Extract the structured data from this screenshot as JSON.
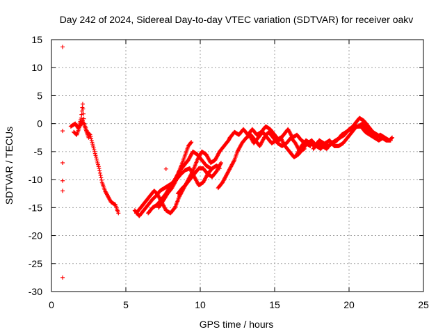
{
  "chart_data": {
    "type": "scatter",
    "title": "Day 242 of 2024, Sidereal Day-to-day VTEC variation (SDTVAR) for receiver oakv",
    "xlabel": "GPS time / hours",
    "ylabel": "SDTVAR / TECUs",
    "xlim": [
      0,
      25
    ],
    "ylim": [
      -30,
      15
    ],
    "xticks": [
      0,
      5,
      10,
      15,
      20,
      25
    ],
    "yticks": [
      -30,
      -25,
      -20,
      -15,
      -10,
      -5,
      0,
      5,
      10,
      15
    ],
    "grid": true,
    "marker": "+",
    "series_color": "#ff0000",
    "outliers": [
      [
        0.75,
        13.7
      ],
      [
        0.75,
        -1.3
      ],
      [
        0.75,
        -7.0
      ],
      [
        0.75,
        -10.2
      ],
      [
        0.75,
        -12.0
      ],
      [
        0.75,
        -27.5
      ],
      [
        7.7,
        -8.1
      ]
    ],
    "tracks": [
      [
        [
          1.3,
          -0.5
        ],
        [
          1.6,
          0.0
        ],
        [
          1.8,
          -0.8
        ],
        [
          2.0,
          1.0
        ],
        [
          2.1,
          3.5
        ],
        [
          2.2,
          0.0
        ],
        [
          2.4,
          -1.5
        ],
        [
          2.6,
          -2.0
        ],
        [
          2.8,
          -4.0
        ],
        [
          3.0,
          -6.0
        ],
        [
          3.2,
          -8.0
        ],
        [
          3.4,
          -10.5
        ],
        [
          3.6,
          -12.0
        ],
        [
          3.8,
          -13.0
        ],
        [
          4.0,
          -14.0
        ],
        [
          4.3,
          -14.5
        ],
        [
          4.5,
          -16.0
        ]
      ],
      [
        [
          1.5,
          -1.5
        ],
        [
          1.7,
          -2.0
        ],
        [
          1.9,
          -0.5
        ],
        [
          2.1,
          0.5
        ],
        [
          2.3,
          -1.0
        ],
        [
          2.5,
          -2.5
        ]
      ],
      [
        [
          5.6,
          -15.5
        ],
        [
          5.9,
          -16.5
        ],
        [
          6.2,
          -15.5
        ],
        [
          6.5,
          -14.5
        ],
        [
          6.8,
          -13.5
        ],
        [
          7.0,
          -13.0
        ],
        [
          7.3,
          -12.0
        ],
        [
          7.6,
          -11.5
        ],
        [
          7.9,
          -11.0
        ],
        [
          8.2,
          -10.5
        ],
        [
          8.5,
          -9.0
        ],
        [
          8.8,
          -7.0
        ],
        [
          9.0,
          -5.5
        ],
        [
          9.2,
          -4.0
        ],
        [
          9.4,
          -3.3
        ]
      ],
      [
        [
          5.7,
          -16.0
        ],
        [
          6.0,
          -15.0
        ],
        [
          6.3,
          -14.0
        ],
        [
          6.6,
          -13.0
        ],
        [
          6.9,
          -12.0
        ],
        [
          7.1,
          -12.5
        ],
        [
          7.4,
          -14.0
        ],
        [
          7.7,
          -15.5
        ],
        [
          8.0,
          -16.0
        ],
        [
          8.3,
          -15.0
        ],
        [
          8.6,
          -13.0
        ],
        [
          8.9,
          -11.5
        ],
        [
          9.2,
          -10.0
        ],
        [
          9.5,
          -8.5
        ],
        [
          9.8,
          -6.5
        ],
        [
          10.1,
          -5.0
        ],
        [
          10.4,
          -5.5
        ],
        [
          10.7,
          -7.0
        ],
        [
          11.0,
          -6.5
        ],
        [
          11.3,
          -5.0
        ],
        [
          11.6,
          -4.0
        ],
        [
          11.9,
          -3.0
        ],
        [
          12.0,
          -2.5
        ]
      ],
      [
        [
          6.5,
          -16.0
        ],
        [
          6.8,
          -15.0
        ],
        [
          7.1,
          -14.5
        ],
        [
          7.4,
          -13.5
        ],
        [
          7.7,
          -12.5
        ],
        [
          8.0,
          -11.0
        ],
        [
          8.3,
          -10.0
        ],
        [
          8.6,
          -8.5
        ],
        [
          8.9,
          -7.5
        ],
        [
          9.2,
          -6.5
        ],
        [
          9.5,
          -5.0
        ],
        [
          9.8,
          -5.5
        ],
        [
          10.1,
          -6.5
        ],
        [
          10.4,
          -7.5
        ],
        [
          10.7,
          -8.0
        ]
      ],
      [
        [
          7.2,
          -15.0
        ],
        [
          7.5,
          -13.8
        ],
        [
          7.8,
          -12.5
        ],
        [
          8.1,
          -11.5
        ],
        [
          8.4,
          -10.0
        ],
        [
          8.7,
          -9.0
        ],
        [
          9.0,
          -8.3
        ],
        [
          9.3,
          -8.0
        ],
        [
          9.6,
          -9.5
        ],
        [
          9.9,
          -11.0
        ],
        [
          10.2,
          -10.5
        ],
        [
          10.5,
          -9.0
        ],
        [
          10.8,
          -8.0
        ],
        [
          11.1,
          -7.5
        ],
        [
          11.3,
          -8.0
        ]
      ],
      [
        [
          8.5,
          -12.5
        ],
        [
          8.8,
          -11.5
        ],
        [
          9.0,
          -11.0
        ],
        [
          9.3,
          -10.0
        ],
        [
          9.6,
          -9.0
        ],
        [
          9.9,
          -8.0
        ],
        [
          10.2,
          -8.0
        ],
        [
          10.5,
          -9.0
        ],
        [
          10.8,
          -9.5
        ],
        [
          11.1,
          -8.5
        ],
        [
          11.4,
          -7.0
        ]
      ],
      [
        [
          11.2,
          -11.5
        ],
        [
          11.5,
          -10.5
        ],
        [
          11.8,
          -9.0
        ],
        [
          12.1,
          -7.5
        ],
        [
          12.3,
          -6.5
        ],
        [
          12.5,
          -5.0
        ],
        [
          12.8,
          -3.5
        ],
        [
          13.1,
          -2.5
        ],
        [
          13.4,
          -2.0
        ],
        [
          13.7,
          -3.0
        ],
        [
          14.0,
          -4.0
        ],
        [
          14.3,
          -2.5
        ],
        [
          14.6,
          -1.5
        ],
        [
          14.9,
          -2.5
        ],
        [
          15.2,
          -3.5
        ],
        [
          15.5,
          -4.0
        ],
        [
          15.8,
          -3.5
        ],
        [
          16.1,
          -2.5
        ],
        [
          16.4,
          -3.5
        ],
        [
          16.7,
          -5.0
        ],
        [
          17.0,
          -4.5
        ]
      ],
      [
        [
          12.0,
          -2.5
        ],
        [
          12.3,
          -1.5
        ],
        [
          12.6,
          -2.0
        ],
        [
          12.9,
          -1.0
        ],
        [
          13.2,
          -2.0
        ],
        [
          13.5,
          -1.0
        ],
        [
          13.8,
          -2.0
        ],
        [
          14.1,
          -1.5
        ],
        [
          14.4,
          -0.5
        ],
        [
          14.7,
          -1.0
        ],
        [
          15.0,
          -2.0
        ],
        [
          15.3,
          -3.0
        ],
        [
          15.6,
          -2.0
        ],
        [
          15.9,
          -1.0
        ],
        [
          16.2,
          -2.5
        ],
        [
          16.5,
          -2.0
        ],
        [
          16.8,
          -3.0
        ],
        [
          17.1,
          -3.5
        ],
        [
          17.4,
          -4.0
        ]
      ],
      [
        [
          13.3,
          -2.0
        ],
        [
          13.6,
          -3.5
        ],
        [
          13.9,
          -2.5
        ],
        [
          14.2,
          -1.5
        ],
        [
          14.5,
          -2.5
        ],
        [
          14.8,
          -3.5
        ],
        [
          15.1,
          -3.0
        ],
        [
          15.4,
          -2.5
        ],
        [
          15.7,
          -4.0
        ],
        [
          16.0,
          -5.0
        ],
        [
          16.3,
          -6.0
        ],
        [
          16.6,
          -5.5
        ],
        [
          16.9,
          -4.5
        ],
        [
          17.2,
          -3.5
        ],
        [
          17.5,
          -3.0
        ],
        [
          17.8,
          -4.0
        ],
        [
          18.1,
          -4.5
        ],
        [
          18.4,
          -3.5
        ],
        [
          18.7,
          -3.0
        ],
        [
          19.0,
          -4.0
        ],
        [
          19.3,
          -4.0
        ],
        [
          19.6,
          -3.5
        ],
        [
          19.9,
          -2.5
        ],
        [
          20.2,
          -1.5
        ],
        [
          20.5,
          -0.5
        ],
        [
          20.8,
          -0.5
        ],
        [
          21.1,
          -1.5
        ],
        [
          21.4,
          -2.0
        ],
        [
          21.7,
          -2.5
        ],
        [
          22.0,
          -3.0
        ],
        [
          22.3,
          -2.5
        ]
      ],
      [
        [
          17.6,
          -4.5
        ],
        [
          17.9,
          -3.5
        ],
        [
          18.2,
          -4.0
        ],
        [
          18.5,
          -4.5
        ],
        [
          18.8,
          -3.5
        ],
        [
          19.1,
          -3.0
        ],
        [
          19.4,
          -2.5
        ],
        [
          19.7,
          -2.0
        ],
        [
          20.0,
          -1.0
        ],
        [
          20.3,
          -0.5
        ],
        [
          20.6,
          -0.5
        ],
        [
          20.9,
          0.0
        ],
        [
          21.2,
          -1.0
        ],
        [
          21.5,
          -2.0
        ],
        [
          21.8,
          -2.5
        ],
        [
          22.1,
          -2.0
        ],
        [
          22.4,
          -2.5
        ],
        [
          22.7,
          -3.0
        ],
        [
          22.9,
          -2.5
        ]
      ],
      [
        [
          16.5,
          -5.5
        ],
        [
          16.8,
          -4.0
        ],
        [
          17.1,
          -3.0
        ],
        [
          17.4,
          -3.5
        ],
        [
          17.7,
          -4.0
        ],
        [
          18.0,
          -3.0
        ],
        [
          18.3,
          -3.5
        ],
        [
          18.6,
          -4.0
        ],
        [
          18.9,
          -3.5
        ],
        [
          19.2,
          -3.0
        ],
        [
          19.5,
          -2.0
        ],
        [
          19.8,
          -1.5
        ],
        [
          20.1,
          -1.0
        ],
        [
          20.4,
          0.0
        ],
        [
          20.7,
          1.0
        ],
        [
          21.0,
          0.5
        ],
        [
          21.3,
          -0.5
        ],
        [
          21.6,
          -1.5
        ],
        [
          21.9,
          -2.0
        ],
        [
          22.2,
          -2.5
        ],
        [
          22.5,
          -3.0
        ],
        [
          22.8,
          -3.0
        ]
      ]
    ]
  }
}
